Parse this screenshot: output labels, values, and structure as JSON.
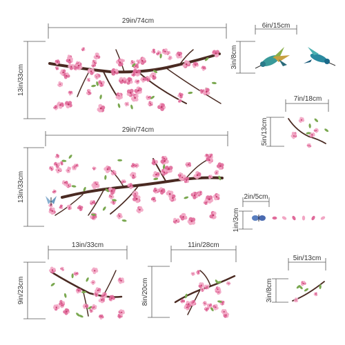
{
  "dimensions": {
    "top_branch_width": "29in/74cm",
    "top_branch_height": "13in/33cm",
    "birds_width": "6in/15cm",
    "birds_height": "3in/8cm",
    "small_sprig_width": "7in/18cm",
    "small_sprig_height": "5in/13cm",
    "middle_branch_width": "29in/74cm",
    "middle_branch_height": "13in/33cm",
    "petals_width": "2in/5cm",
    "petals_height": "1in/3cm",
    "bottom_left_width": "13in/33cm",
    "bottom_left_height": "9in/23cm",
    "bottom_center_width": "11in/28cm",
    "bottom_center_height": "8in/20cm",
    "bottom_right_width": "5in/13cm",
    "bottom_right_height": "3in/8cm"
  },
  "colors": {
    "blossom": "#f2a6c4",
    "blossom_dark": "#e06a9a",
    "branch": "#4a2a22",
    "leaf": "#7aa850",
    "bird_body": "#3a9a9a",
    "butterfly": "#5a7fc0"
  }
}
